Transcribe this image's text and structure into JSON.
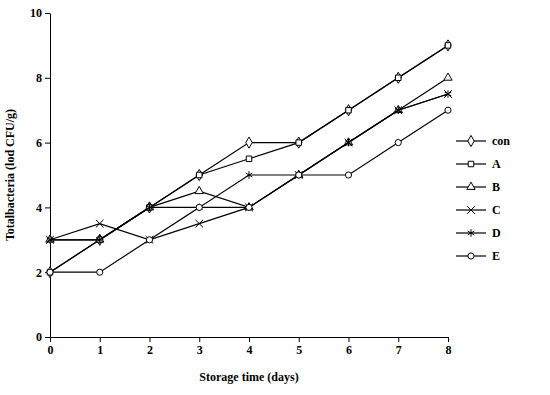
{
  "chart_data": {
    "type": "line",
    "x_label": "Storage time (days)",
    "y_label": "Totalbacteria (lod CFU/g)",
    "x": [
      0,
      1,
      2,
      3,
      4,
      5,
      6,
      7,
      8
    ],
    "series": [
      {
        "name": "con",
        "color": "#000000",
        "marker": "diamond",
        "values": [
          2,
          3,
          4,
          5,
          6,
          6,
          7,
          8,
          9
        ]
      },
      {
        "name": "A",
        "color": "#000000",
        "marker": "square",
        "values": [
          2,
          3,
          4,
          5,
          5.5,
          6,
          7,
          8,
          9
        ]
      },
      {
        "name": "B",
        "color": "#000000",
        "marker": "triangle",
        "values": [
          3,
          3,
          4,
          4.5,
          4,
          5,
          6,
          7,
          8
        ]
      },
      {
        "name": "C",
        "color": "#000000",
        "marker": "x",
        "values": [
          3,
          3.5,
          3,
          3.5,
          4,
          5,
          6,
          7,
          7.5
        ]
      },
      {
        "name": "D",
        "color": "#000000",
        "marker": "asterisk",
        "values": [
          3,
          3,
          4,
          4,
          5,
          5,
          6,
          7,
          7.5
        ]
      },
      {
        "name": "E",
        "color": "#000000",
        "marker": "circle",
        "values": [
          2,
          2,
          3,
          4,
          4,
          5,
          5,
          6,
          7
        ]
      }
    ],
    "xlim": [
      0,
      8
    ],
    "xticks": [
      0,
      1,
      2,
      3,
      4,
      5,
      6,
      7,
      8
    ],
    "ylim": [
      0,
      10
    ],
    "yticks": [
      0,
      2,
      4,
      6,
      8,
      10
    ],
    "grid": false,
    "legend": "right"
  }
}
